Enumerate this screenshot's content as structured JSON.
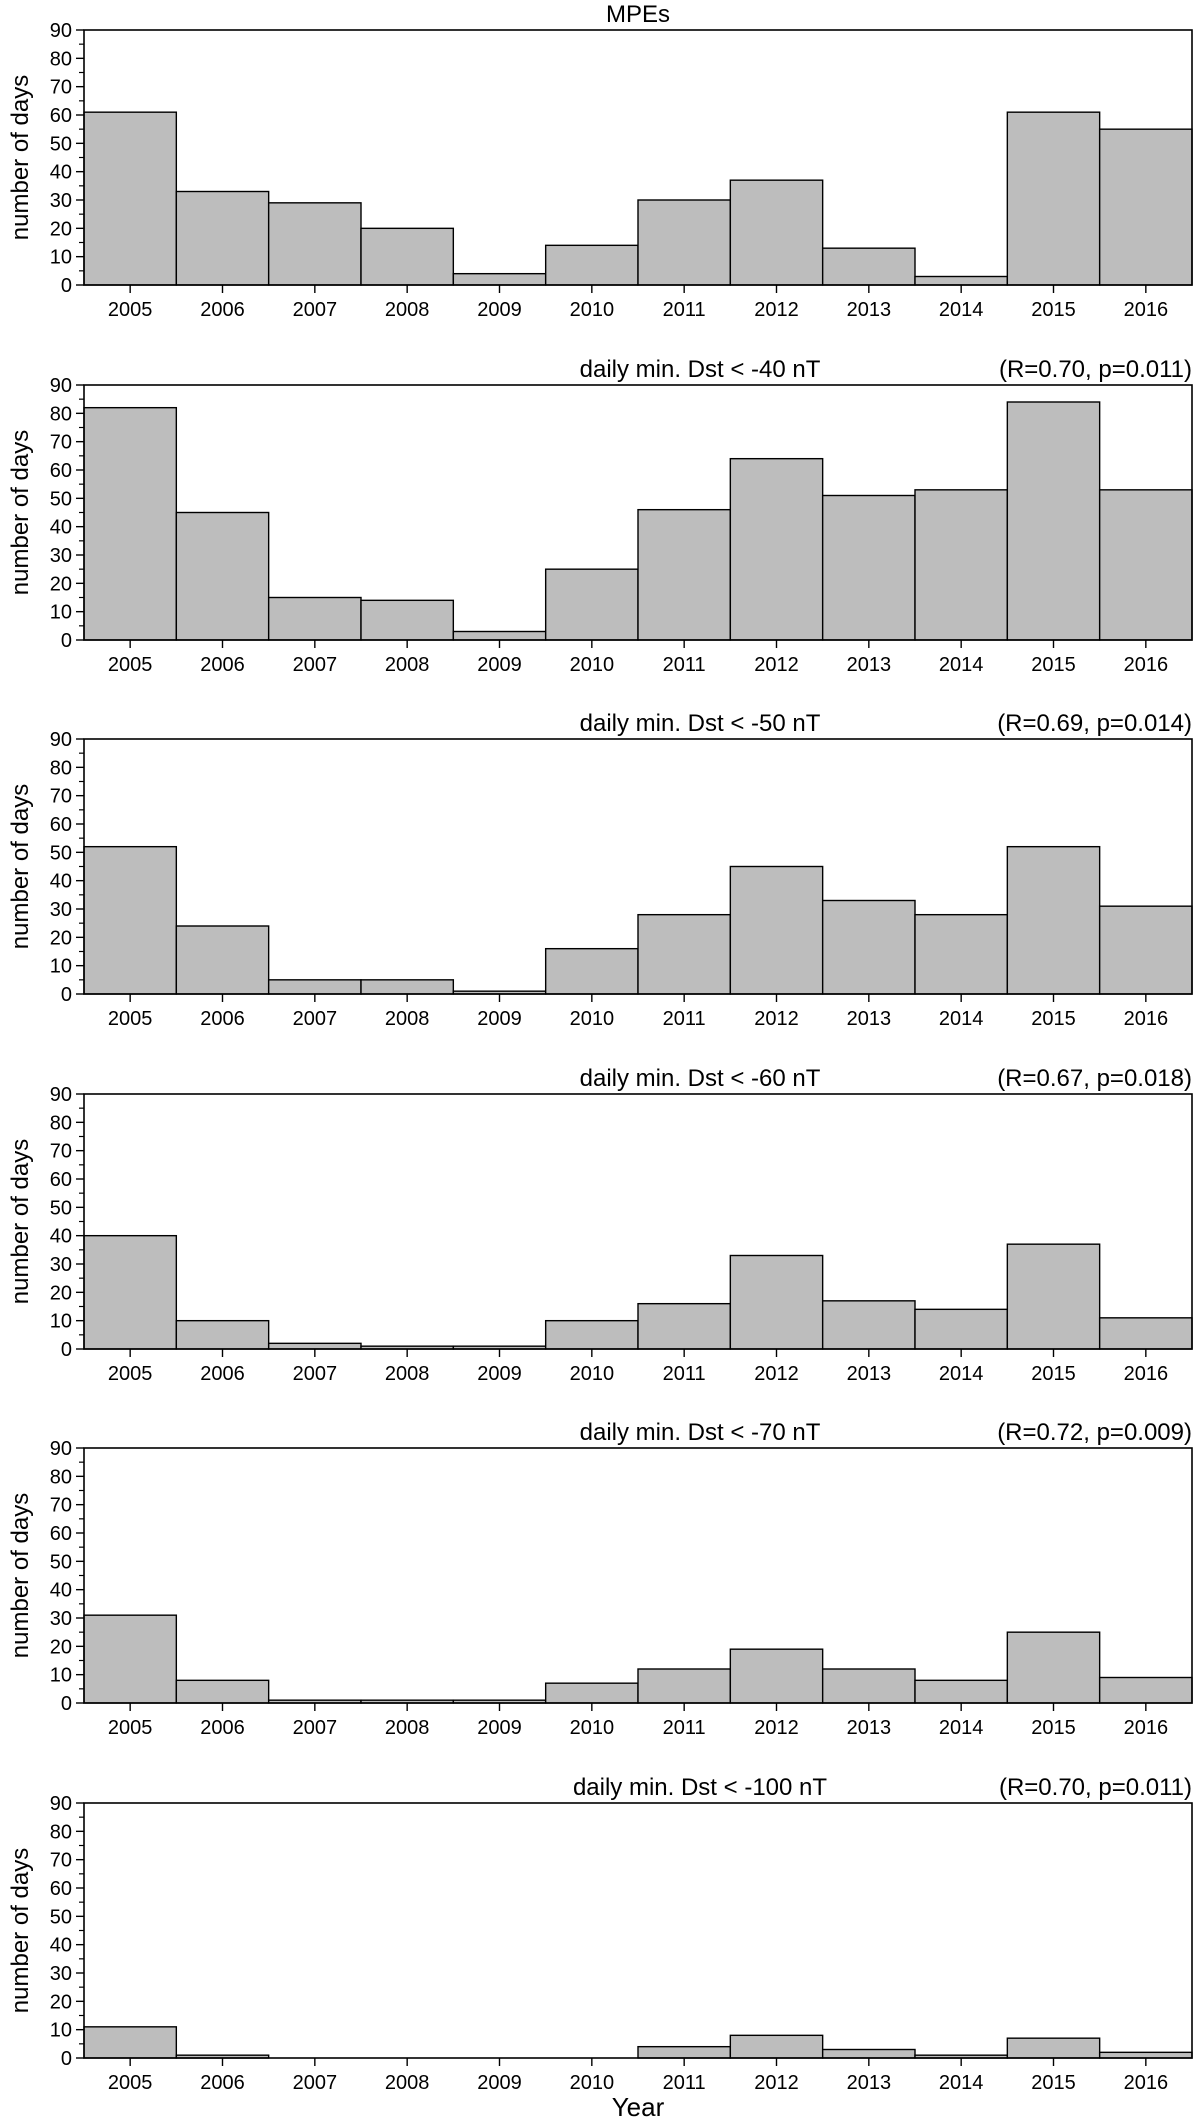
{
  "chart_data": [
    {
      "type": "bar",
      "title": "MPEs",
      "subtitle": "",
      "ylabel": "number of days",
      "xlabel": "",
      "ylim": [
        0,
        90
      ],
      "categories": [
        "2005",
        "2006",
        "2007",
        "2008",
        "2009",
        "2010",
        "2011",
        "2012",
        "2013",
        "2014",
        "2015",
        "2016"
      ],
      "values": [
        61,
        33,
        29,
        20,
        4,
        14,
        30,
        37,
        13,
        3,
        61,
        55
      ],
      "grid": false
    },
    {
      "type": "bar",
      "title": "daily min. Dst < -40 nT",
      "subtitle": "(R=0.70, p=0.011)",
      "ylabel": "number of days",
      "xlabel": "",
      "ylim": [
        0,
        90
      ],
      "categories": [
        "2005",
        "2006",
        "2007",
        "2008",
        "2009",
        "2010",
        "2011",
        "2012",
        "2013",
        "2014",
        "2015",
        "2016"
      ],
      "values": [
        82,
        45,
        15,
        14,
        3,
        25,
        46,
        64,
        51,
        53,
        84,
        53
      ],
      "grid": false
    },
    {
      "type": "bar",
      "title": "daily min. Dst < -50 nT",
      "subtitle": "(R=0.69, p=0.014)",
      "ylabel": "number of days",
      "xlabel": "",
      "ylim": [
        0,
        90
      ],
      "categories": [
        "2005",
        "2006",
        "2007",
        "2008",
        "2009",
        "2010",
        "2011",
        "2012",
        "2013",
        "2014",
        "2015",
        "2016"
      ],
      "values": [
        52,
        24,
        5,
        5,
        1,
        16,
        28,
        45,
        33,
        28,
        52,
        31
      ],
      "grid": false
    },
    {
      "type": "bar",
      "title": "daily min. Dst < -60 nT",
      "subtitle": "(R=0.67, p=0.018)",
      "ylabel": "number of days",
      "xlabel": "",
      "ylim": [
        0,
        90
      ],
      "categories": [
        "2005",
        "2006",
        "2007",
        "2008",
        "2009",
        "2010",
        "2011",
        "2012",
        "2013",
        "2014",
        "2015",
        "2016"
      ],
      "values": [
        40,
        10,
        2,
        1,
        1,
        10,
        16,
        33,
        17,
        14,
        37,
        11
      ],
      "grid": false
    },
    {
      "type": "bar",
      "title": "daily min. Dst < -70 nT",
      "subtitle": "(R=0.72, p=0.009)",
      "ylabel": "number of days",
      "xlabel": "",
      "ylim": [
        0,
        90
      ],
      "categories": [
        "2005",
        "2006",
        "2007",
        "2008",
        "2009",
        "2010",
        "2011",
        "2012",
        "2013",
        "2014",
        "2015",
        "2016"
      ],
      "values": [
        31,
        8,
        1,
        1,
        1,
        7,
        12,
        19,
        12,
        8,
        25,
        9
      ],
      "grid": false
    },
    {
      "type": "bar",
      "title": "daily min. Dst < -100 nT",
      "subtitle": "(R=0.70, p=0.011)",
      "ylabel": "number of days",
      "xlabel": "Year",
      "ylim": [
        0,
        90
      ],
      "categories": [
        "2005",
        "2006",
        "2007",
        "2008",
        "2009",
        "2010",
        "2011",
        "2012",
        "2013",
        "2014",
        "2015",
        "2016"
      ],
      "values": [
        11,
        1,
        0,
        0,
        0,
        0,
        4,
        8,
        3,
        1,
        7,
        2
      ],
      "grid": false
    }
  ],
  "style": {
    "bar_fill": "#bdbdbd",
    "bar_stroke": "#000000",
    "axis_color": "#000000",
    "background": "#ffffff"
  },
  "y_ticks": [
    0,
    10,
    20,
    30,
    40,
    50,
    60,
    70,
    80,
    90
  ]
}
